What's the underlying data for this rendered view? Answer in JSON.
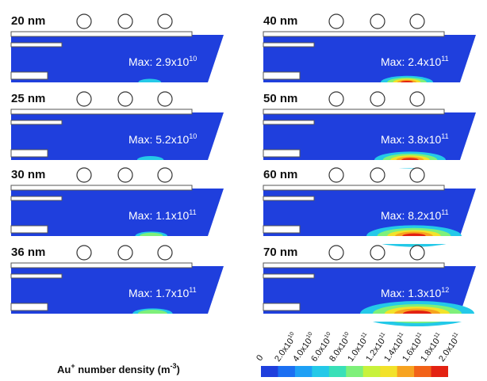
{
  "panels": [
    {
      "label": "20 nm",
      "max_text": "Max:  2.9x10",
      "max_exp": "10",
      "hot": 0.04
    },
    {
      "label": "25 nm",
      "max_text": "Max:  5.2x10",
      "max_exp": "10",
      "hot": 0.08
    },
    {
      "label": "30 nm",
      "max_text": "Max:  1.1x10",
      "max_exp": "11",
      "hot": 0.14
    },
    {
      "label": "36 nm",
      "max_text": "Max:  1.7x10",
      "max_exp": "11",
      "hot": 0.22
    },
    {
      "label": "40 nm",
      "max_text": "Max:  2.4x10",
      "max_exp": "11",
      "hot": 0.35
    },
    {
      "label": "50 nm",
      "max_text": "Max:  3.8x10",
      "max_exp": "11",
      "hot": 0.55
    },
    {
      "label": "60 nm",
      "max_text": "Max:  8.2x10",
      "max_exp": "11",
      "hot": 0.8
    },
    {
      "label": "70 nm",
      "max_text": "Max:  1.3x10",
      "max_exp": "12",
      "hot": 1.0
    }
  ],
  "legend": {
    "title_main": "Au",
    "title_sup": "+",
    "title_rest": " number density (m",
    "title_unit_sup": "-3",
    "title_end": ")",
    "ticks": [
      {
        "base": "0",
        "exp": ""
      },
      {
        "base": "2.0x10",
        "exp": "10"
      },
      {
        "base": "4.0x10",
        "exp": "10"
      },
      {
        "base": "6.0x10",
        "exp": "10"
      },
      {
        "base": "8.0x10",
        "exp": "10"
      },
      {
        "base": "1.0x10",
        "exp": "11"
      },
      {
        "base": "1.2x10",
        "exp": "11"
      },
      {
        "base": "1.4x10",
        "exp": "11"
      },
      {
        "base": "1.6x10",
        "exp": "11"
      },
      {
        "base": "1.8x10",
        "exp": "11"
      },
      {
        "base": "2.0x10",
        "exp": "11"
      }
    ],
    "colors": [
      "#1f3fdd",
      "#1b6ff2",
      "#1ea0f5",
      "#24c9e8",
      "#39e0b8",
      "#7ef07a",
      "#c8f23c",
      "#f2e22a",
      "#f7a320",
      "#f26218",
      "#e32212"
    ]
  }
}
